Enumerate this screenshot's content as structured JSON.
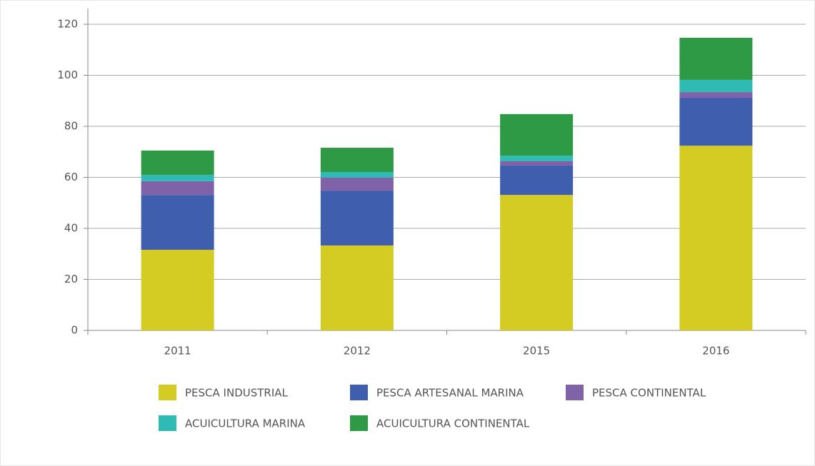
{
  "chart_data": {
    "type": "stacked-bar",
    "categories": [
      "2011",
      "2012",
      "2015",
      "2016"
    ],
    "series": [
      {
        "name": "PESCA INDUSTRIAL",
        "color": "#d4cc23",
        "values": [
          31.6,
          33.3,
          53.1,
          72.4
        ]
      },
      {
        "name": "PESCA ARTESANAL MARINA",
        "color": "#3f5fae",
        "values": [
          21.5,
          21.5,
          11.5,
          18.8
        ]
      },
      {
        "name": "PESCA CONTINENTAL",
        "color": "#7f62a8",
        "values": [
          5.4,
          5.1,
          1.7,
          2.2
        ]
      },
      {
        "name": "ACUICULTURA MARINA",
        "color": "#2fbab4",
        "values": [
          2.5,
          2.2,
          2.2,
          4.8
        ]
      },
      {
        "name": "ACUICULTURA CONTINENTAL",
        "color": "#2f9a45",
        "values": [
          9.5,
          9.5,
          16.3,
          16.5
        ]
      }
    ],
    "ylim": [
      0,
      120
    ],
    "yticks": [
      0,
      20,
      40,
      60,
      80,
      100,
      120
    ],
    "grid": true
  }
}
